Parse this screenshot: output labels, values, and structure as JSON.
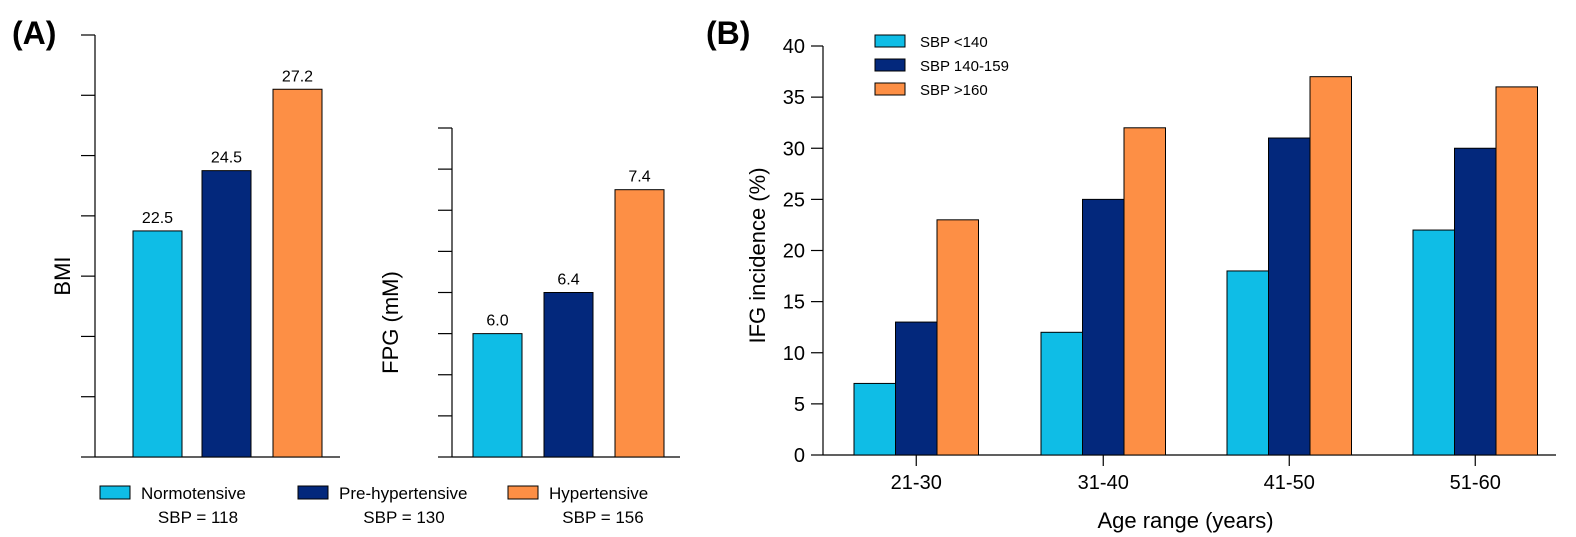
{
  "panels": {
    "a_label": "(A)",
    "b_label": "(B)"
  },
  "colors": {
    "normotensive": "#0fbde6",
    "prehypertensive": "#03287c",
    "hypertensive": "#fd8f45"
  },
  "legend_a": [
    {
      "name": "Normotensive",
      "sub": "SBP = 118",
      "color": "#0fbde6"
    },
    {
      "name": "Pre-hypertensive",
      "sub": "SBP = 130",
      "color": "#03287c"
    },
    {
      "name": "Hypertensive",
      "sub": "SBP = 156",
      "color": "#fd8f45"
    }
  ],
  "chart_data": [
    {
      "type": "bar",
      "ylabel": "BMI",
      "categories": [
        "Normotensive",
        "Pre-hypertensive",
        "Hypertensive"
      ],
      "values": [
        22.5,
        24.5,
        27.2
      ],
      "value_labels": [
        "22.5",
        "24.5",
        "27.2"
      ],
      "ylim": [
        15,
        29
      ],
      "ytick_labels_shown": false
    },
    {
      "type": "bar",
      "ylabel": "FPG (mM)",
      "categories": [
        "Normotensive",
        "Pre-hypertensive",
        "Hypertensive"
      ],
      "values": [
        6.0,
        6.4,
        7.4
      ],
      "value_labels": [
        "6.0",
        "6.4",
        "7.4"
      ],
      "ylim": [
        4.8,
        8.0
      ],
      "ytick_labels_shown": false
    },
    {
      "type": "bar",
      "xlabel": "Age range (years)",
      "ylabel": "IFG incidence (%)",
      "categories": [
        "21-30",
        "31-40",
        "41-50",
        "51-60"
      ],
      "series": [
        {
          "name": "SBP <140",
          "values": [
            7,
            12,
            18,
            22
          ],
          "color": "#0fbde6"
        },
        {
          "name": "SBP 140-159",
          "values": [
            13,
            25,
            31,
            30
          ],
          "color": "#03287c"
        },
        {
          "name": "SBP >160",
          "values": [
            23,
            32,
            37,
            36
          ],
          "color": "#fd8f45"
        }
      ],
      "ylim": [
        0,
        40
      ],
      "yticks": [
        0,
        5,
        10,
        15,
        20,
        25,
        30,
        35,
        40
      ],
      "legend": "top-left"
    }
  ]
}
